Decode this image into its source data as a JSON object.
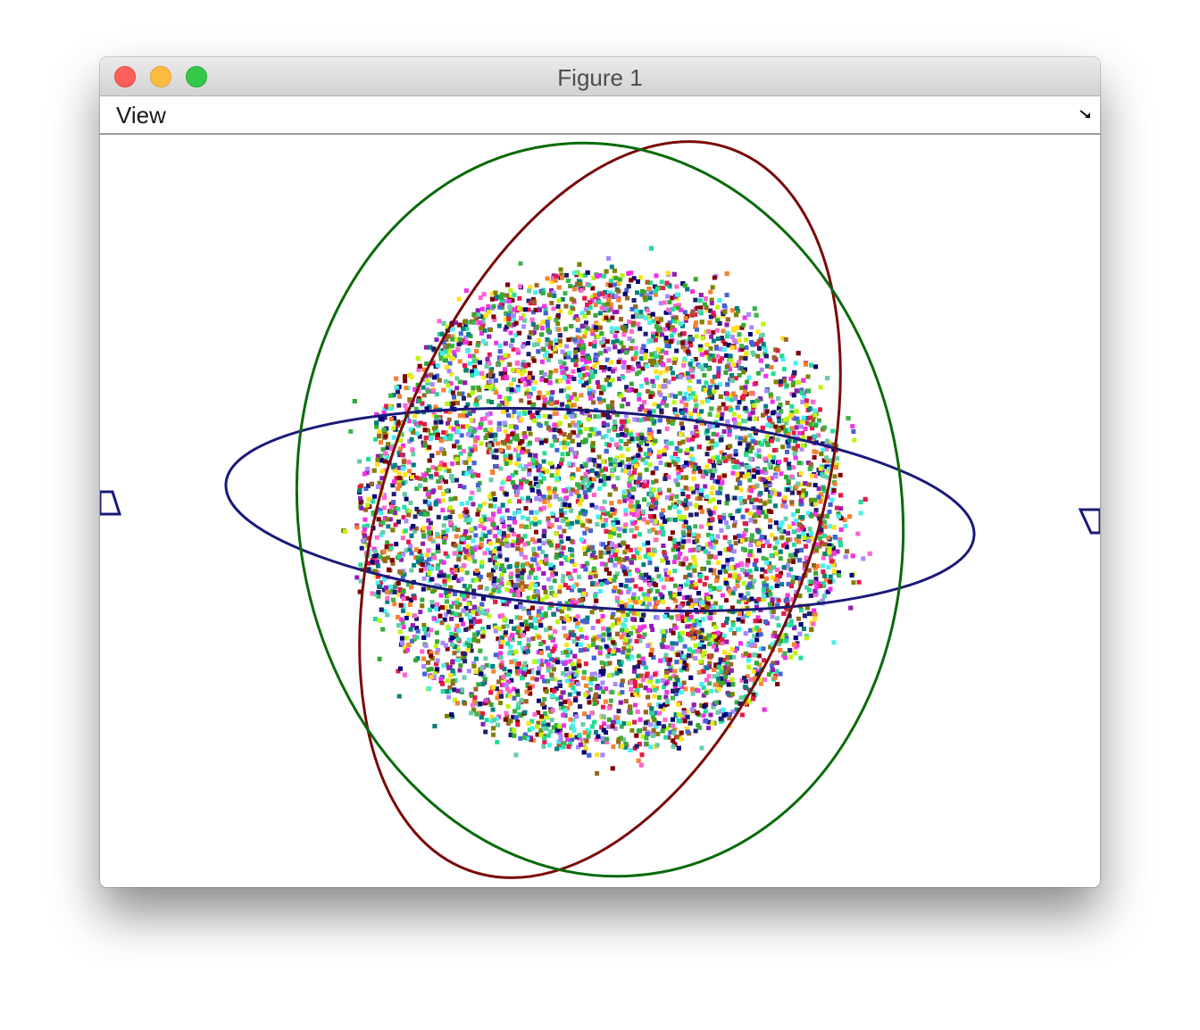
{
  "window": {
    "title": "Figure 1"
  },
  "menubar": {
    "view_label": "View",
    "resize_icon": "resize-arrow-icon"
  },
  "scene": {
    "description_colors": {
      "blue_ring": "#1a1a7a",
      "dark_red_ring": "#7a0a0a",
      "dark_green_ring": "#0a6a0a",
      "point_palette": [
        "#e6194b",
        "#3cb44b",
        "#ffe119",
        "#4363d8",
        "#f58231",
        "#911eb4",
        "#46f0f0",
        "#f032e6",
        "#bcf60c",
        "#1f1f6f",
        "#008080",
        "#9a6324",
        "#800000",
        "#808000",
        "#000075",
        "#66ccaa",
        "#ff66cc",
        "#33aa33",
        "#aa88ff",
        "#22dd99"
      ]
    }
  }
}
